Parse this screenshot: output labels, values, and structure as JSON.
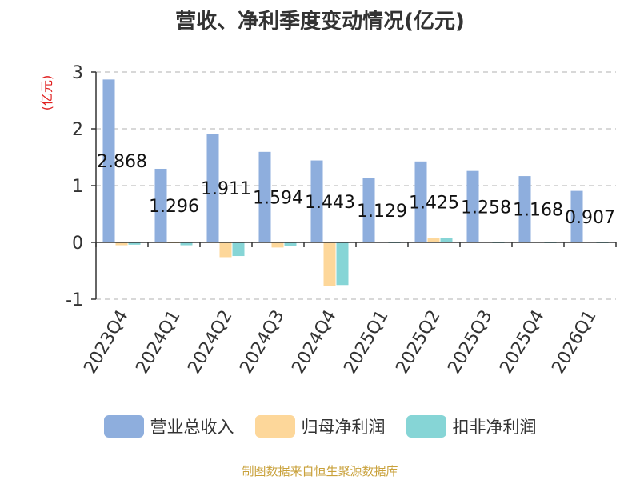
{
  "chart_data": {
    "type": "bar",
    "title": "营收、净利季度变动情况(亿元)",
    "ylabel": "(亿元)",
    "xlabel": "",
    "ylim": [
      -1,
      3
    ],
    "yticks": [
      -1,
      0,
      1,
      2,
      3
    ],
    "grid": true,
    "legend_position": "bottom",
    "categories": [
      "2023Q4",
      "2024Q1",
      "2024Q2",
      "2024Q3",
      "2024Q4",
      "2025Q1",
      "2025Q2",
      "2025Q3",
      "2025Q4",
      "2026Q1"
    ],
    "series": [
      {
        "name": "营业总收入",
        "color": "#8eaedd",
        "values": [
          2.868,
          1.296,
          1.911,
          1.594,
          1.443,
          1.129,
          1.425,
          1.258,
          1.168,
          0.907
        ],
        "data_labels": [
          "2.868",
          "1.296",
          "1.911",
          "1.594",
          "1.443",
          "1.129",
          "1.425",
          "1.258",
          "1.168",
          "0.907"
        ]
      },
      {
        "name": "归母净利润",
        "color": "#fdd79a",
        "values": [
          -0.05,
          -0.01,
          -0.26,
          -0.09,
          -0.77,
          0.01,
          0.07,
          0.01,
          0.01,
          0.01
        ]
      },
      {
        "name": "扣非净利润",
        "color": "#86d5d6",
        "values": [
          -0.04,
          -0.05,
          -0.24,
          -0.07,
          -0.75,
          -0.01,
          0.08,
          -0.01,
          -0.01,
          -0.01
        ]
      }
    ]
  },
  "source_note": "制图数据来自恒生聚源数据库"
}
